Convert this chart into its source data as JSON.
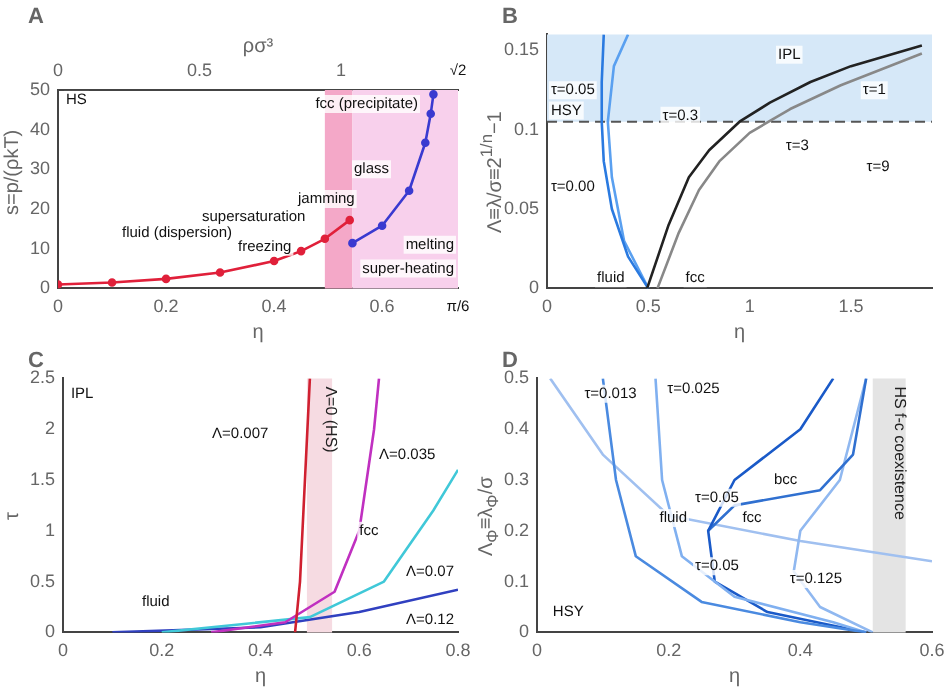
{
  "chart_data": [
    {
      "type": "line",
      "title": "A",
      "xlabel": "η",
      "ylabel": "s=p/(ρkT)",
      "x2label": "ρσ³",
      "xlim": [
        0,
        0.7405
      ],
      "xticks": [
        0,
        0.2,
        0.4,
        0.6
      ],
      "x2lim": [
        0,
        1.414
      ],
      "x2ticks": [
        0,
        0.5,
        1
      ],
      "ylim": [
        0,
        50
      ],
      "yticks": [
        0,
        10,
        20,
        30,
        40,
        50
      ],
      "marker": "circle",
      "grid": false,
      "legend": false,
      "series": [
        {
          "color": "#e0203a",
          "x": [
            0,
            0.1,
            0.2,
            0.3,
            0.4,
            0.45,
            0.494,
            0.54
          ],
          "values": [
            1,
            1.5,
            2.4,
            4,
            6.9,
            9.4,
            12.5,
            17.2
          ]
        },
        {
          "color": "#3a3ad0",
          "x": [
            0.545,
            0.6,
            0.65,
            0.68,
            0.69,
            0.695
          ],
          "values": [
            11.4,
            15.8,
            24.6,
            36.7,
            44,
            48.9
          ]
        }
      ],
      "bands": [
        {
          "axis": "x",
          "from": 0.494,
          "to": 0.545,
          "color": "#f4a8c8"
        },
        {
          "axis": "x",
          "from": 0.545,
          "to": 0.7405,
          "color": "#f8d0ec"
        }
      ],
      "annotations": [
        "HS",
        "fluid (dispersion)",
        "freezing",
        "supersaturation",
        "jamming",
        "glass",
        "melting",
        "super-heating",
        "fcc (precipitate)",
        "π/6",
        "√2"
      ]
    },
    {
      "type": "line",
      "title": "B",
      "xlabel": "η",
      "ylabel": "Λ≡λ/σ≡2$^{1/n}$−1",
      "xlim": [
        0,
        1.9
      ],
      "xticks": [
        0,
        0.5,
        1,
        1.5
      ],
      "ylim": [
        0,
        0.16
      ],
      "yticks": [
        0,
        0.05,
        0.1,
        0.15
      ],
      "marker": "none",
      "grid": false,
      "legend": false,
      "ref_lines": [
        {
          "axis": "y",
          "value": 0.105,
          "color": "#555555",
          "line_style": "dashed"
        }
      ],
      "bands": [
        {
          "axis": "y",
          "from": 0.105,
          "to": 0.16,
          "color": "#d6e8f8"
        }
      ],
      "series": [
        {
          "color": "#222222",
          "x": [
            0.494,
            0.6,
            0.7,
            0.8,
            0.95,
            1.1,
            1.3,
            1.5,
            1.85
          ],
          "values": [
            0,
            0.04,
            0.07,
            0.087,
            0.105,
            0.117,
            0.13,
            0.14,
            0.153
          ]
        },
        {
          "color": "#888888",
          "x": [
            0.545,
            0.65,
            0.75,
            0.85,
            1.0,
            1.2,
            1.45,
            1.85
          ],
          "values": [
            0,
            0.035,
            0.062,
            0.08,
            0.098,
            0.113,
            0.128,
            0.148
          ]
        },
        {
          "color": "#2a7ae0",
          "x": [
            0.5,
            0.4,
            0.32,
            0.28,
            0.27,
            0.27,
            0.28
          ],
          "values": [
            0,
            0.02,
            0.05,
            0.08,
            0.105,
            0.13,
            0.16
          ]
        },
        {
          "color": "#5aa0f0",
          "x": [
            0.5,
            0.38,
            0.32,
            0.3,
            0.33,
            0.4
          ],
          "values": [
            0,
            0.03,
            0.07,
            0.105,
            0.14,
            0.16
          ]
        }
      ],
      "annotations": [
        "IPL",
        "τ=1",
        "τ=0.3",
        "τ=3",
        "τ=9",
        "τ=0.05",
        "HSY",
        "τ=0.00",
        "fluid",
        "fcc"
      ]
    },
    {
      "type": "line",
      "title": "C",
      "xlabel": "η",
      "ylabel": "τ",
      "xlim": [
        0,
        0.8
      ],
      "xticks": [
        0,
        0.2,
        0.4,
        0.6,
        0.8
      ],
      "ylim": [
        0,
        2.5
      ],
      "yticks": [
        0,
        0.5,
        1,
        1.5,
        2,
        2.5
      ],
      "marker": "none",
      "grid": false,
      "legend": false,
      "bands": [
        {
          "axis": "x",
          "from": 0.494,
          "to": 0.545,
          "color": "#f6dbe2",
          "label": "Λ=0 (HS)"
        }
      ],
      "series": [
        {
          "color": "#d02030",
          "x": [
            0.47,
            0.48,
            0.49,
            0.5
          ],
          "values": [
            0,
            0.5,
            1.5,
            2.5
          ]
        },
        {
          "color": "#c030c0",
          "x": [
            0.3,
            0.45,
            0.55,
            0.6,
            0.63,
            0.64
          ],
          "values": [
            0,
            0.1,
            0.4,
            1,
            2,
            2.5
          ]
        },
        {
          "color": "#40c8d8",
          "x": [
            0.2,
            0.5,
            0.65,
            0.75,
            0.8
          ],
          "values": [
            0,
            0.15,
            0.5,
            1.2,
            1.6
          ]
        },
        {
          "color": "#3040c0",
          "x": [
            0.1,
            0.4,
            0.6,
            0.8
          ],
          "values": [
            0,
            0.05,
            0.2,
            0.42
          ]
        }
      ],
      "annotations": [
        "IPL",
        "Λ=0.007",
        "Λ=0.035",
        "Λ=0.07",
        "Λ=0.12",
        "fluid",
        "fcc"
      ]
    },
    {
      "type": "line",
      "title": "D",
      "xlabel": "η",
      "ylabel": "Λ$_{Φ}$≡λ$_{Φ}$/σ",
      "xlim": [
        0,
        0.6
      ],
      "xticks": [
        0,
        0.2,
        0.4,
        0.6
      ],
      "ylim": [
        0,
        0.5
      ],
      "yticks": [
        0,
        0.1,
        0.2,
        0.3,
        0.4,
        0.5
      ],
      "marker": "none",
      "grid": false,
      "legend": false,
      "bands": [
        {
          "axis": "x",
          "from": 0.51,
          "to": 0.56,
          "color": "#e4e4e4",
          "label": "HS f-c coexistence"
        }
      ],
      "series": [
        {
          "color": "#4a8ae0",
          "x": [
            0.1,
            0.12,
            0.15,
            0.25,
            0.4,
            0.5
          ],
          "values": [
            0.5,
            0.3,
            0.15,
            0.06,
            0.02,
            0
          ]
        },
        {
          "color": "#80b0f0",
          "x": [
            0.18,
            0.19,
            0.22,
            0.3,
            0.45,
            0.5
          ],
          "values": [
            0.5,
            0.3,
            0.15,
            0.07,
            0.02,
            0
          ]
        },
        {
          "color": "#1a5ac8",
          "x": [
            0.45,
            0.4,
            0.3,
            0.26,
            0.27,
            0.35,
            0.5
          ],
          "values": [
            0.5,
            0.4,
            0.3,
            0.2,
            0.1,
            0.04,
            0
          ]
        },
        {
          "color": "#3070d0",
          "x": [
            0.5,
            0.48,
            0.43,
            0.3,
            0.26
          ],
          "values": [
            0.5,
            0.35,
            0.28,
            0.25,
            0.2
          ]
        },
        {
          "color": "#90b8f0",
          "x": [
            0.5,
            0.46,
            0.4,
            0.39,
            0.43,
            0.51
          ],
          "values": [
            0.5,
            0.3,
            0.2,
            0.12,
            0.05,
            0
          ]
        },
        {
          "color": "#a0c0f0",
          "x": [
            0.02,
            0.1,
            0.2,
            0.4,
            0.6
          ],
          "values": [
            0.5,
            0.35,
            0.23,
            0.18,
            0.14
          ]
        }
      ],
      "annotations": [
        "HSY",
        "τ=0.013",
        "τ=0.025",
        "fluid",
        "bcc",
        "fcc",
        "τ=0.05",
        "τ=0.05",
        "τ=0.125"
      ]
    }
  ]
}
